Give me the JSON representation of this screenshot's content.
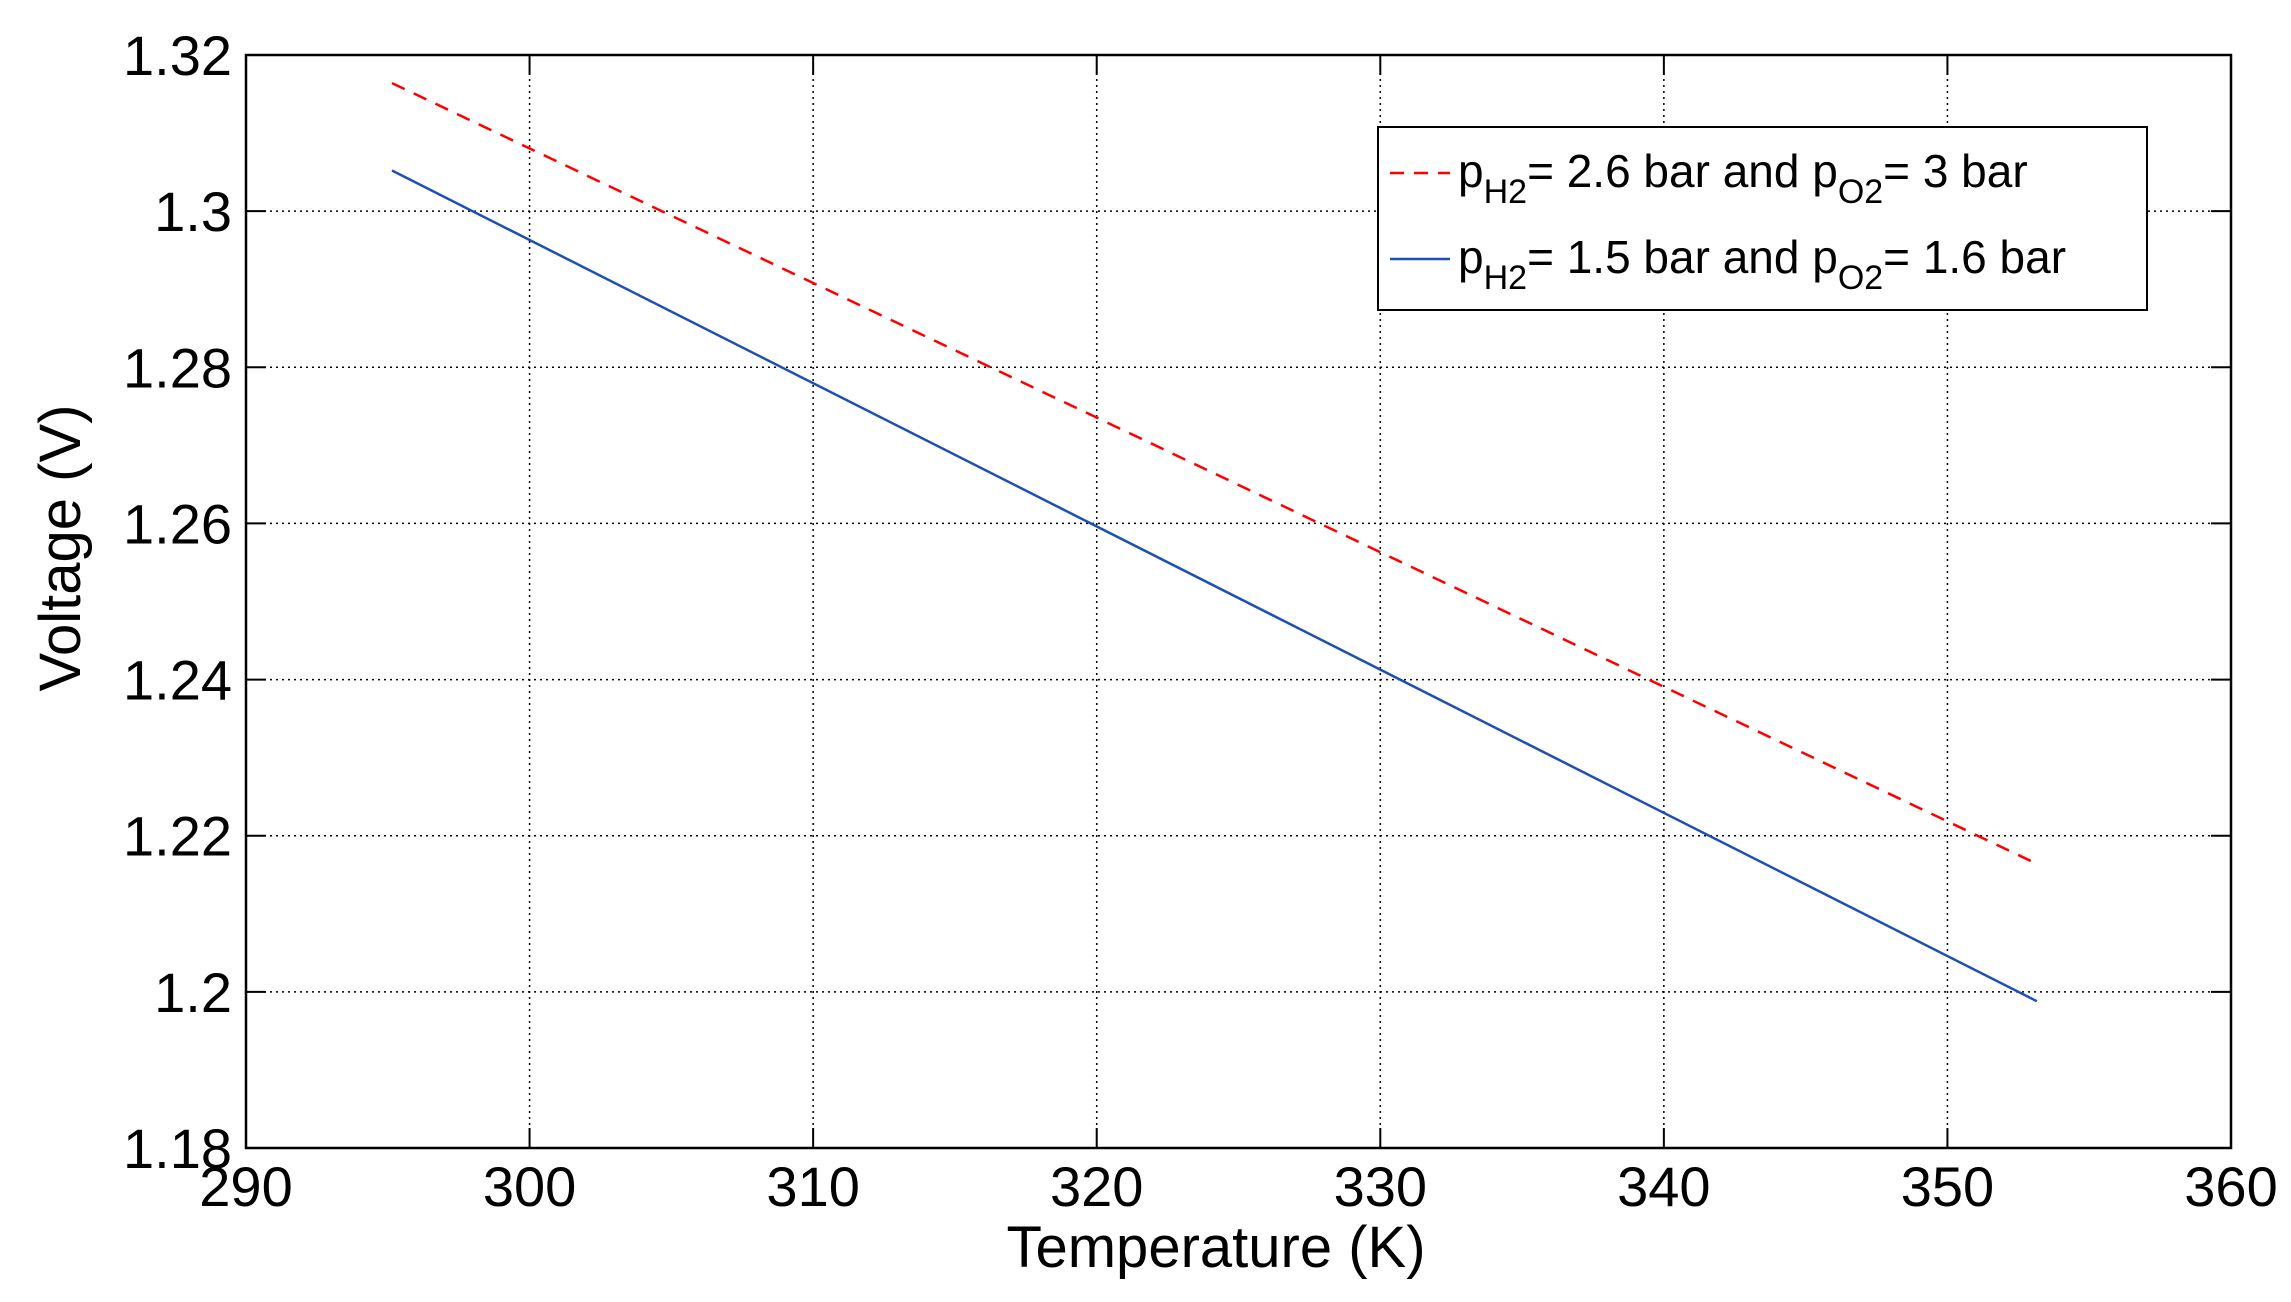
{
  "chart_data": {
    "type": "line",
    "title": "",
    "xlabel": "Temperature (K)",
    "ylabel": "Voltage (V)",
    "xlim": [
      290,
      360
    ],
    "ylim": [
      1.18,
      1.32
    ],
    "xticks": [
      290,
      300,
      310,
      320,
      330,
      340,
      350,
      360
    ],
    "yticks": [
      1.18,
      1.2,
      1.22,
      1.24,
      1.26,
      1.28,
      1.3,
      1.32
    ],
    "xtick_labels": [
      "290",
      "300",
      "310",
      "320",
      "330",
      "340",
      "350",
      "360"
    ],
    "ytick_labels": [
      "1.18",
      "1.2",
      "1.22",
      "1.24",
      "1.26",
      "1.28",
      "1.3",
      "1.32"
    ],
    "grid": true,
    "legend_position": "top-right",
    "series": [
      {
        "legend": {
          "p1": "p",
          "sub1": "H2",
          "mid": "= 2.6 bar and p",
          "sub2": "O2",
          "end": "= 3 bar"
        },
        "color": "#ff0000",
        "style": "dashed",
        "x": [
          295.15,
          353.15
        ],
        "y": [
          1.3164,
          1.2164
        ]
      },
      {
        "legend": {
          "p1": "p",
          "sub1": "H2",
          "mid": "= 1.5 bar and p",
          "sub2": "O2",
          "end": "= 1.6 bar"
        },
        "color": "#1f4fb4",
        "style": "solid",
        "x": [
          295.15,
          353.15
        ],
        "y": [
          1.3052,
          1.1988
        ]
      }
    ]
  }
}
